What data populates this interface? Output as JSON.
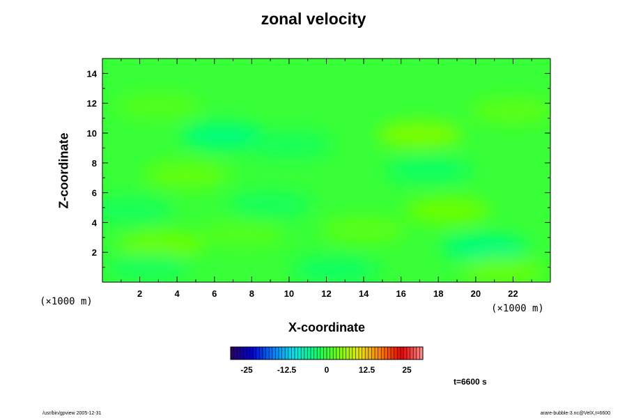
{
  "chart_data": {
    "type": "heatmap",
    "title": "zonal velocity",
    "xlabel": "X-coordinate",
    "ylabel": "Z-coordinate",
    "x_unit": "(×1000 m)",
    "y_unit": "(×1000 m)",
    "xlim": [
      0,
      24
    ],
    "ylim": [
      0,
      15
    ],
    "x_ticks": [
      2,
      4,
      6,
      8,
      10,
      12,
      14,
      16,
      18,
      20,
      22
    ],
    "y_ticks": [
      2,
      4,
      6,
      8,
      10,
      12,
      14
    ],
    "colorbar": {
      "range": [
        -30,
        30
      ],
      "ticks": [
        -25,
        -12.5,
        0,
        12.5,
        25
      ],
      "tick_labels": [
        "-25",
        "-12.5",
        "0",
        "12.5",
        "25"
      ],
      "colormap": [
        "#2a0060",
        "#0000d8",
        "#0080ff",
        "#00e8e8",
        "#00ff70",
        "#70ff00",
        "#e8e800",
        "#ff8000",
        "#e80000",
        "#ff9090"
      ]
    },
    "background_value": 0,
    "features": [
      {
        "x": 3.2,
        "z": 2.5,
        "value": 3
      },
      {
        "x": 6.5,
        "z": 9.8,
        "value": -4
      },
      {
        "x": 4.5,
        "z": 7.2,
        "value": 2.5
      },
      {
        "x": 17.0,
        "z": 9.9,
        "value": 4
      },
      {
        "x": 20.5,
        "z": 2.3,
        "value": -4
      },
      {
        "x": 18.5,
        "z": 4.8,
        "value": 3
      },
      {
        "x": 2.5,
        "z": 1.0,
        "value": -2
      },
      {
        "x": 12.5,
        "z": 0.8,
        "value": -2.5
      },
      {
        "x": 17.5,
        "z": 7.5,
        "value": -2.5
      },
      {
        "x": 9.0,
        "z": 5.2,
        "value": -2
      },
      {
        "x": 14.0,
        "z": 3.5,
        "value": 2
      },
      {
        "x": 22.0,
        "z": 11.5,
        "value": 2
      },
      {
        "x": 3.0,
        "z": 11.8,
        "value": 1.5
      },
      {
        "x": 21.5,
        "z": 0.7,
        "value": 2.5
      },
      {
        "x": 10.0,
        "z": 9.2,
        "value": -2
      },
      {
        "x": 7.5,
        "z": 3.2,
        "value": 1.5
      },
      {
        "x": 1.5,
        "z": 4.8,
        "value": -2
      }
    ]
  },
  "time_label": "t=6600 s",
  "footer": {
    "left": "/usr/bin/gpview 2005-12-31",
    "right": "arare-bubble-3.nc@VelX,t=6600"
  }
}
